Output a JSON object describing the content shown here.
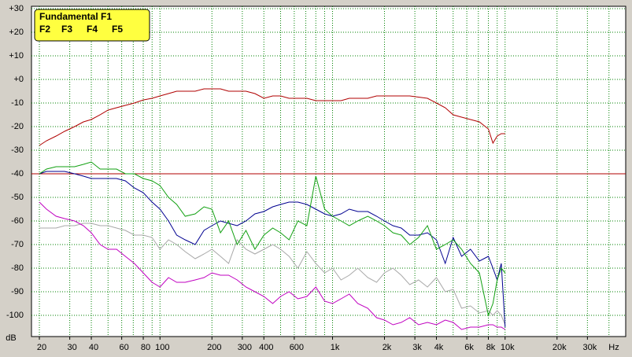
{
  "chart_data": {
    "type": "line",
    "xscale": "log",
    "grid": true,
    "x_label": "Hz",
    "y_label": "dB",
    "xlim": [
      18,
      50000
    ],
    "ylim": [
      -109,
      31
    ],
    "xticks": [
      20,
      30,
      40,
      60,
      80,
      100,
      200,
      300,
      400,
      600,
      {
        "value": 1000,
        "label": "1k"
      },
      {
        "value": 2000,
        "label": "2k"
      },
      {
        "value": 3000,
        "label": "3k"
      },
      {
        "value": 4000,
        "label": "4k"
      },
      {
        "value": 6000,
        "label": "6k"
      },
      {
        "value": 8000,
        "label": "8k"
      },
      {
        "value": 10000,
        "label": "10k"
      },
      {
        "value": 20000,
        "label": "20k"
      },
      {
        "value": 30000,
        "label": "30k"
      }
    ],
    "xgrid": [
      20,
      30,
      40,
      50,
      60,
      70,
      80,
      90,
      100,
      200,
      300,
      400,
      500,
      600,
      700,
      800,
      900,
      1000,
      2000,
      3000,
      4000,
      5000,
      6000,
      7000,
      8000,
      9000,
      10000,
      20000,
      30000,
      40000
    ],
    "yticks": [
      {
        "value": 30,
        "label": "+30"
      },
      {
        "value": 20,
        "label": "+20"
      },
      {
        "value": 10,
        "label": "+10"
      },
      {
        "value": 0,
        "label": "+0"
      },
      -10,
      -20,
      -30,
      -40,
      -50,
      -60,
      -70,
      -80,
      -90,
      -100
    ],
    "reference_line": {
      "value": -40,
      "color": "#b00000"
    },
    "x": [
      20,
      22,
      25,
      28,
      32,
      36,
      40,
      45,
      50,
      56,
      63,
      71,
      80,
      90,
      100,
      112,
      125,
      140,
      160,
      180,
      200,
      224,
      250,
      280,
      315,
      355,
      400,
      450,
      500,
      560,
      630,
      710,
      800,
      900,
      1000,
      1120,
      1250,
      1400,
      1600,
      1800,
      2000,
      2240,
      2500,
      2800,
      3150,
      3550,
      4000,
      4500,
      5000,
      5600,
      6300,
      7100,
      8000,
      8500,
      9000,
      9500,
      10000
    ],
    "series": [
      {
        "name": "Fundamental F1",
        "color": "#b00000",
        "values": [
          -28,
          -26,
          -24,
          -22,
          -20,
          -18,
          -17,
          -15,
          -13,
          -12,
          -11,
          -10,
          -8.7,
          -8,
          -7,
          -6,
          -5,
          -5,
          -5,
          -4,
          -4,
          -4,
          -5,
          -5,
          -5,
          -6,
          -8,
          -7,
          -7,
          -8,
          -8,
          -8,
          -9,
          -9,
          -9,
          -9,
          -8,
          -8,
          -8,
          -7,
          -7,
          -7,
          -7,
          -7,
          -7.5,
          -8,
          -10,
          -12,
          -15,
          -16,
          -17,
          -18,
          -21,
          -27,
          -24,
          -23,
          -23
        ]
      },
      {
        "name": "F2",
        "color": "#10a010",
        "values": [
          -40,
          -38,
          -37,
          -37,
          -37,
          -36,
          -35,
          -38,
          -38,
          -38,
          -40,
          -40,
          -42,
          -43,
          -45,
          -50,
          -53,
          -58,
          -57,
          -54,
          -55,
          -65,
          -60,
          -70,
          -64,
          -72,
          -66,
          -63,
          -65,
          -68,
          -60,
          -62,
          -41,
          -55,
          -58,
          -60,
          -62,
          -60,
          -58,
          -60,
          -62,
          -65,
          -66,
          -70,
          -67,
          -62,
          -72,
          -70,
          -68,
          -72,
          -78,
          -82,
          -100,
          -95,
          -85,
          -80,
          -82
        ]
      },
      {
        "name": "F3",
        "color": "#000090",
        "values": [
          -40,
          -39,
          -39,
          -39,
          -40,
          -41,
          -42,
          -42,
          -42,
          -42,
          -43,
          -46,
          -48,
          -52,
          -55,
          -60,
          -66,
          -68,
          -70,
          -64,
          -62,
          -60,
          -61,
          -62,
          -60,
          -57,
          -56,
          -54,
          -53,
          -52,
          -52,
          -53,
          -55,
          -57,
          -58,
          -57,
          -55,
          -56,
          -56,
          -58,
          -60,
          -62,
          -63,
          -66,
          -66,
          -65,
          -68,
          -78,
          -67,
          -75,
          -72,
          -77,
          -75,
          -80,
          -85,
          -78,
          -105
        ]
      },
      {
        "name": "F4",
        "color": "#c000c0",
        "values": [
          -52,
          -55,
          -58,
          -59,
          -60,
          -62,
          -65,
          -70,
          -72,
          -72,
          -75,
          -78,
          -82,
          -86,
          -88,
          -84,
          -86,
          -86,
          -85,
          -84,
          -82,
          -83,
          -83,
          -85,
          -88,
          -90,
          -92,
          -95,
          -92,
          -90,
          -93,
          -92,
          -88,
          -94,
          -95,
          -93,
          -91,
          -95,
          -97,
          -101,
          -102,
          -104,
          -103,
          -101,
          -104,
          -103,
          -104,
          -102,
          -103,
          -106,
          -105,
          -105,
          -104,
          -104,
          -105,
          -105,
          -106
        ]
      },
      {
        "name": "F5",
        "color": "#a8a8a8",
        "values": [
          -63,
          -63,
          -63,
          -62,
          -62,
          -61,
          -61,
          -62,
          -62,
          -63,
          -64,
          -66,
          -66,
          -67,
          -72,
          -68,
          -70,
          -73,
          -76,
          -74,
          -72,
          -75,
          -78,
          -68,
          -72,
          -74,
          -72,
          -70,
          -72,
          -75,
          -80,
          -73,
          -78,
          -82,
          -80,
          -85,
          -83,
          -80,
          -84,
          -86,
          -82,
          -80,
          -83,
          -87,
          -85,
          -88,
          -84,
          -90,
          -89,
          -97,
          -96,
          -99,
          -98,
          -100,
          -98,
          -100,
          -104
        ]
      }
    ]
  }
}
